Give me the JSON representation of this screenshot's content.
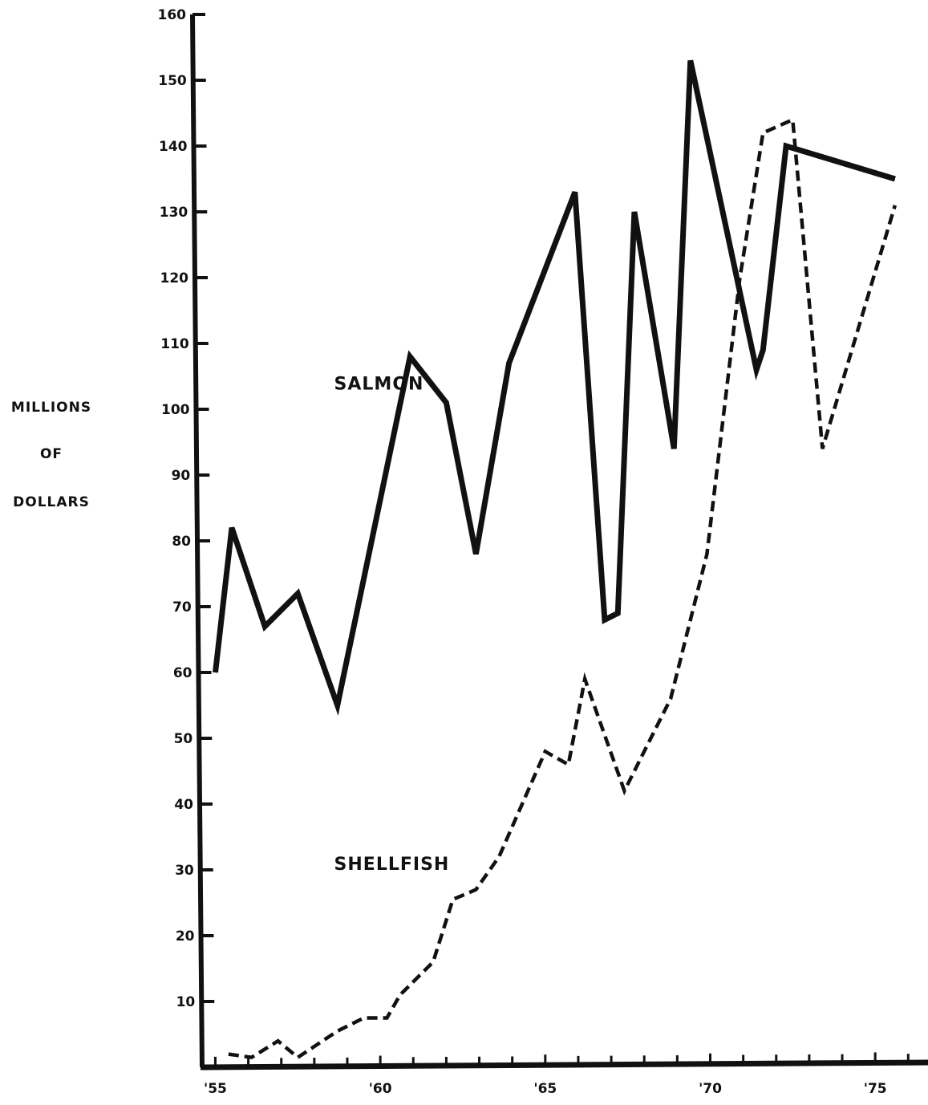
{
  "chart_data": {
    "type": "line",
    "title": "",
    "xlabel": "",
    "ylabel_lines": [
      "MILLIONS",
      "OF",
      "DOLLARS"
    ],
    "ylim": [
      0,
      160
    ],
    "xlim": [
      1954.6,
      1976.6
    ],
    "yticks": [
      10,
      20,
      30,
      40,
      50,
      60,
      70,
      80,
      90,
      100,
      110,
      120,
      130,
      140,
      150,
      160
    ],
    "ytick_labels": [
      "10",
      "20",
      "30",
      "40",
      "50",
      "60",
      "70",
      "80",
      "90",
      "100",
      "110",
      "120",
      "130",
      "140",
      "150",
      "160"
    ],
    "xticks": [
      1955,
      1960,
      1965,
      1970,
      1975
    ],
    "xtick_labels": [
      "'55",
      "'60",
      "'65",
      "'70",
      "'75"
    ],
    "minor_xticks": [
      1956,
      1957,
      1958,
      1959,
      1961,
      1962,
      1963,
      1964,
      1966,
      1967,
      1968,
      1969,
      1971,
      1972,
      1973,
      1974,
      1976
    ],
    "grid": false,
    "legend": "none",
    "series": [
      {
        "name": "SALMON",
        "style": "solid",
        "color": "#111111",
        "label_at": [
          1958.6,
          103
        ],
        "points": [
          [
            1955,
            60
          ],
          [
            1955.5,
            82
          ],
          [
            1956.5,
            67
          ],
          [
            1957.5,
            72
          ],
          [
            1958.7,
            55
          ],
          [
            1960.9,
            108
          ],
          [
            1962.0,
            101
          ],
          [
            1962.9,
            78
          ],
          [
            1963.9,
            107
          ],
          [
            1965.9,
            133
          ],
          [
            1966.8,
            68
          ],
          [
            1967.2,
            69
          ],
          [
            1967.7,
            130
          ],
          [
            1968.9,
            94
          ],
          [
            1969.4,
            153
          ],
          [
            1971.4,
            106
          ],
          [
            1971.6,
            109
          ],
          [
            1972.3,
            140
          ],
          [
            1975.6,
            135
          ]
        ]
      },
      {
        "name": "SHELLFISH",
        "style": "dashed",
        "color": "#111111",
        "label_at": [
          1958.6,
          30
        ],
        "points": [
          [
            1955.4,
            2
          ],
          [
            1956.1,
            1.5
          ],
          [
            1956.9,
            4
          ],
          [
            1957.5,
            1.5
          ],
          [
            1958.7,
            5.5
          ],
          [
            1959.5,
            7.5
          ],
          [
            1960.2,
            7.5
          ],
          [
            1960.6,
            11
          ],
          [
            1961.6,
            16
          ],
          [
            1962.2,
            25.5
          ],
          [
            1962.9,
            27
          ],
          [
            1963.6,
            32
          ],
          [
            1965.0,
            48
          ],
          [
            1965.7,
            46
          ],
          [
            1966.2,
            59
          ],
          [
            1967.4,
            42
          ],
          [
            1968.8,
            56
          ],
          [
            1969.9,
            78
          ],
          [
            1970.9,
            120
          ],
          [
            1971.6,
            142
          ],
          [
            1972.5,
            144
          ],
          [
            1973.4,
            94
          ],
          [
            1975.6,
            131
          ]
        ]
      }
    ]
  }
}
